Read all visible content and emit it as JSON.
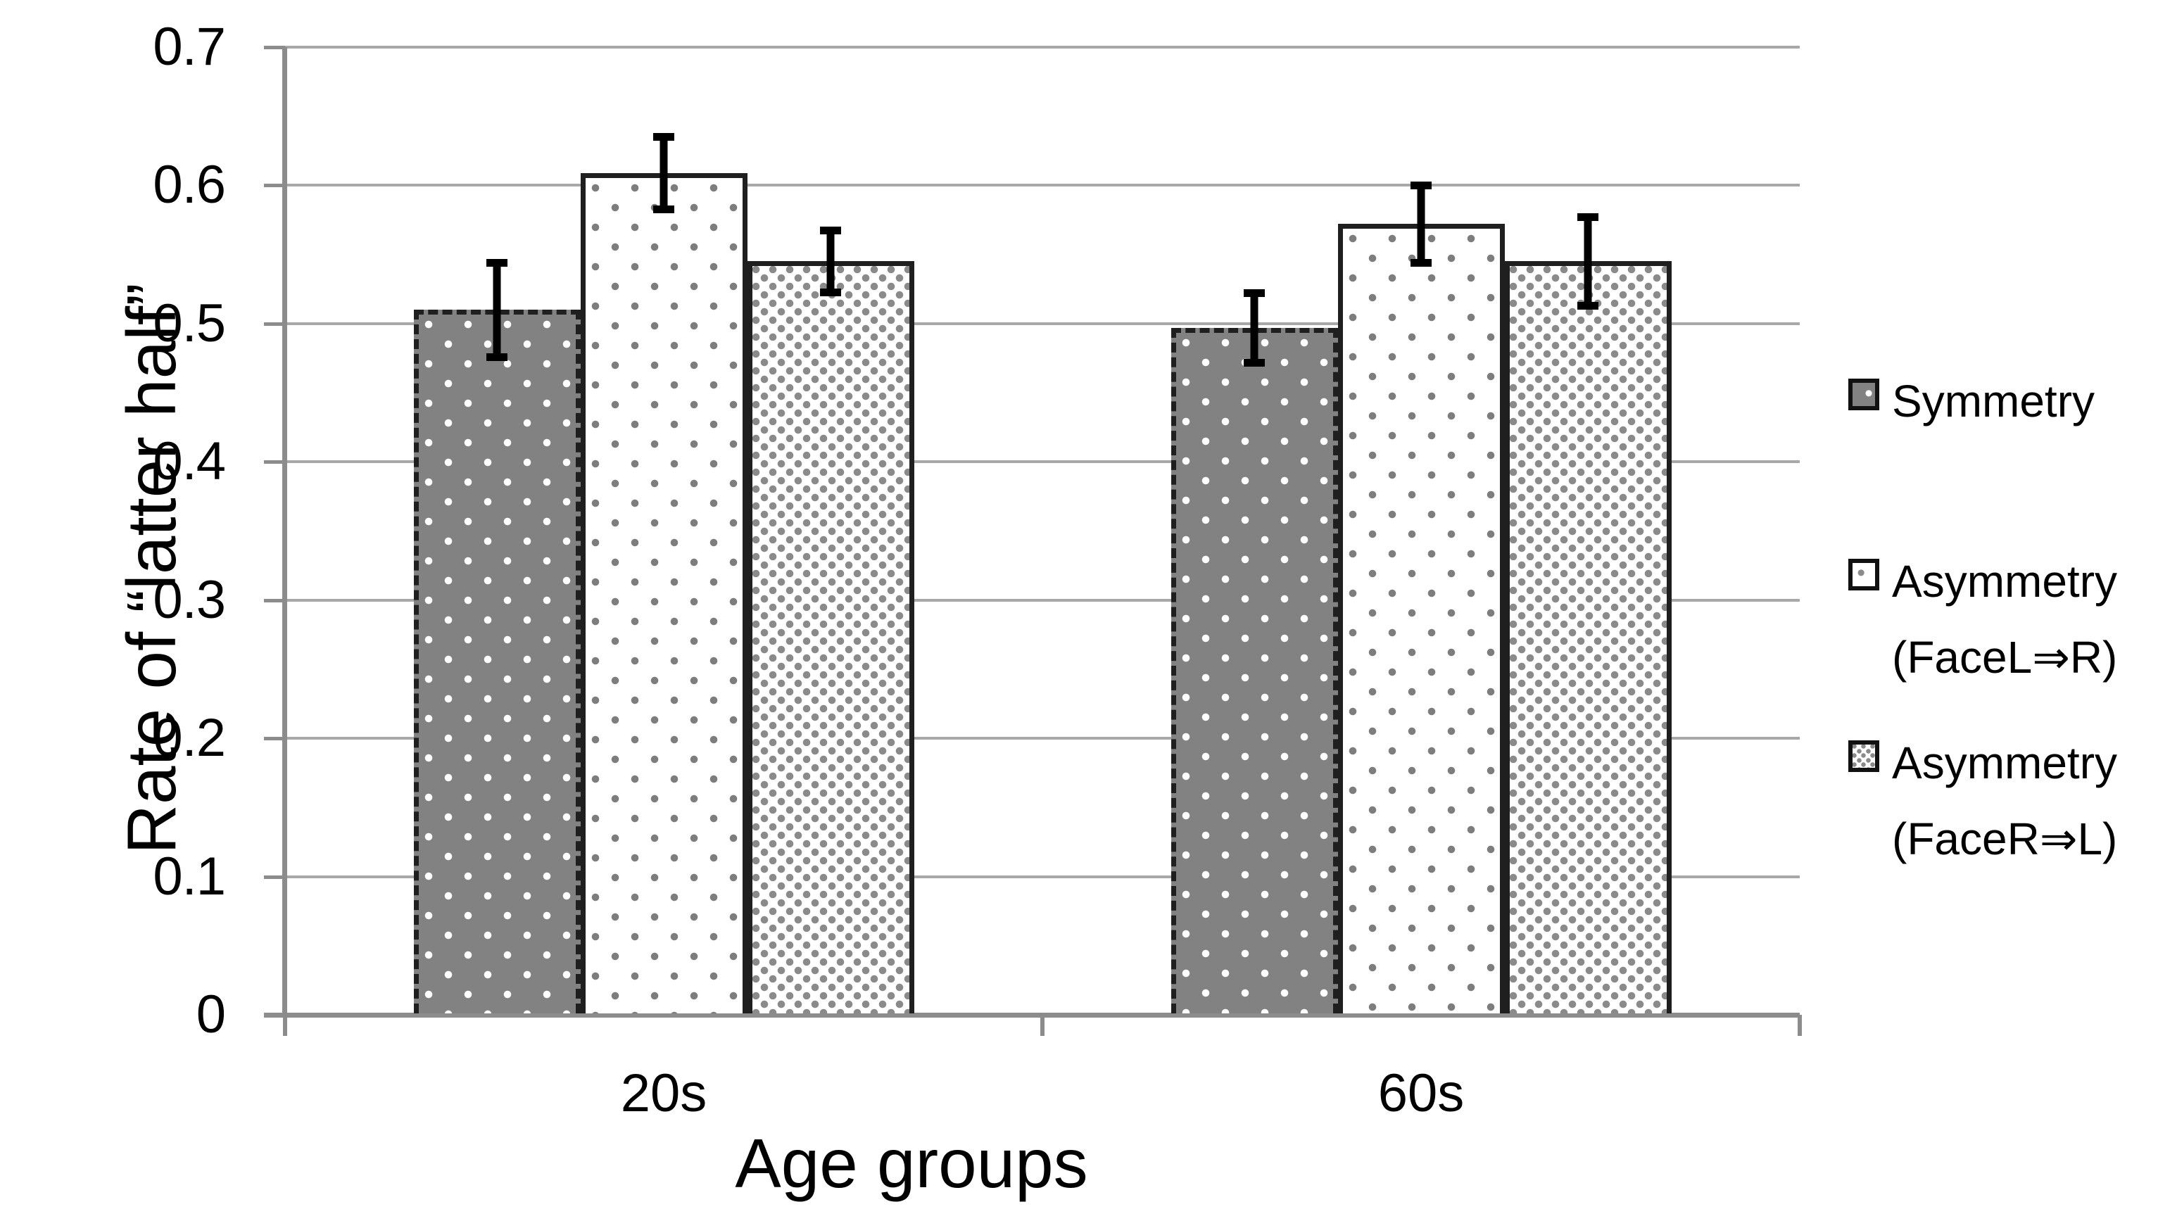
{
  "chart_data": {
    "type": "bar",
    "title": "",
    "categories": [
      "20s",
      "60s"
    ],
    "series": [
      {
        "name": "Symmetry",
        "legend_lines": [
          "Symmetry"
        ],
        "values": [
          0.51,
          0.497
        ],
        "errors": [
          0.037,
          0.028
        ],
        "fill": "#828282",
        "dot_color": "#ffffff",
        "pattern": "gray-with-white-dots",
        "border_style": "dashed"
      },
      {
        "name": "Asymmetry (FaceL⇒R)",
        "legend_lines": [
          "Asymmetry",
          "(FaceL⇒R)"
        ],
        "values": [
          0.609,
          0.572
        ],
        "errors": [
          0.029,
          0.031
        ],
        "fill": "#ffffff",
        "dot_color": "#7d7d7d",
        "pattern": "white-with-sparse-gray-dots",
        "border_style": "solid"
      },
      {
        "name": "Asymmetry (FaceR⇒L)",
        "legend_lines": [
          "Asymmetry",
          "(FaceR⇒L)"
        ],
        "values": [
          0.545,
          0.545
        ],
        "errors": [
          0.025,
          0.035
        ],
        "fill": "#ffffff",
        "dot_color": "#8a8a8a",
        "pattern": "white-with-dense-gray-dots",
        "border_style": "solid"
      }
    ],
    "xlabel": "Age groups",
    "ylabel": "Rate of “latter half”",
    "ylim": [
      0,
      0.7
    ],
    "ytick_step": 0.1,
    "ytick_labels": [
      "0",
      "0.1",
      "0.2",
      "0.3",
      "0.4",
      "0.5",
      "0.6",
      "0.7"
    ],
    "grid": true,
    "legend_position": "right",
    "error_bars": true,
    "colors": {
      "axis": "#8c8c8c",
      "gridline": "#a8a8a8",
      "error_bar": "#000000",
      "text": "#000000"
    }
  }
}
